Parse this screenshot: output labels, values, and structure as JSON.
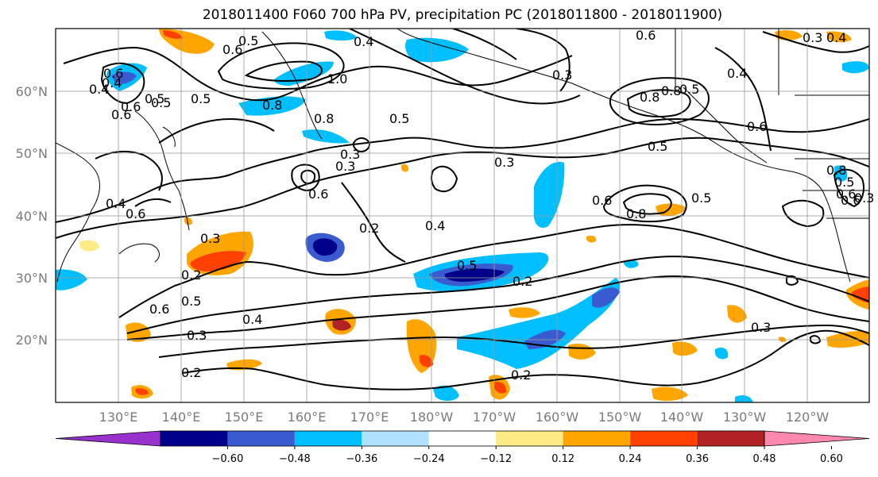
{
  "title": "2018011400 F060 700 hPa PV, precipitation PC (2018011800 - 2018011900)",
  "lat_ticks": [
    "60°N",
    "50°N",
    "40°N",
    "30°N",
    "20°N"
  ],
  "lon_ticks": [
    "130°E",
    "140°E",
    "150°E",
    "160°E",
    "170°E",
    "180°W",
    "170°W",
    "160°W",
    "150°W",
    "140°W",
    "130°W",
    "120°W"
  ],
  "colorbar": {
    "colors": [
      "#9932cc",
      "#00008b",
      "#3a5bcf",
      "#00bfff",
      "#b0e2ff",
      "#ffffff",
      "#ffeb85",
      "#ffa500",
      "#ff4000",
      "#b22222",
      "#ff88b0"
    ],
    "tick_labels": [
      "−0.60",
      "−0.48",
      "−0.36",
      "−0.24",
      "−0.12",
      "0.12",
      "0.24",
      "0.36",
      "0.48",
      "0.60"
    ]
  },
  "contour_labels": [
    "0.5",
    "0.6",
    "0.4",
    "0.3",
    "0.4",
    "0.6",
    "0.5",
    "0.6",
    "0.8",
    "1.0",
    "0.6",
    "0.8",
    "0.4",
    "0.8",
    "0.5",
    "0.3",
    "0.3",
    "0.6",
    "0.2",
    "0.4",
    "0.3",
    "0.5",
    "0.2",
    "0.6",
    "0.8",
    "0.5",
    "0.6",
    "0.5",
    "0.6",
    "0.5",
    "0.4",
    "0.3",
    "0.2",
    "0.4",
    "0.3",
    "0.2",
    "0.2",
    "0.3",
    "0.5",
    "0.6",
    "0.5",
    "0.3",
    "0.8",
    "0.6",
    "0.3",
    "0.4",
    "0.5",
    "0.8",
    "0.6",
    "0.6",
    "0.5",
    "0.4"
  ]
}
